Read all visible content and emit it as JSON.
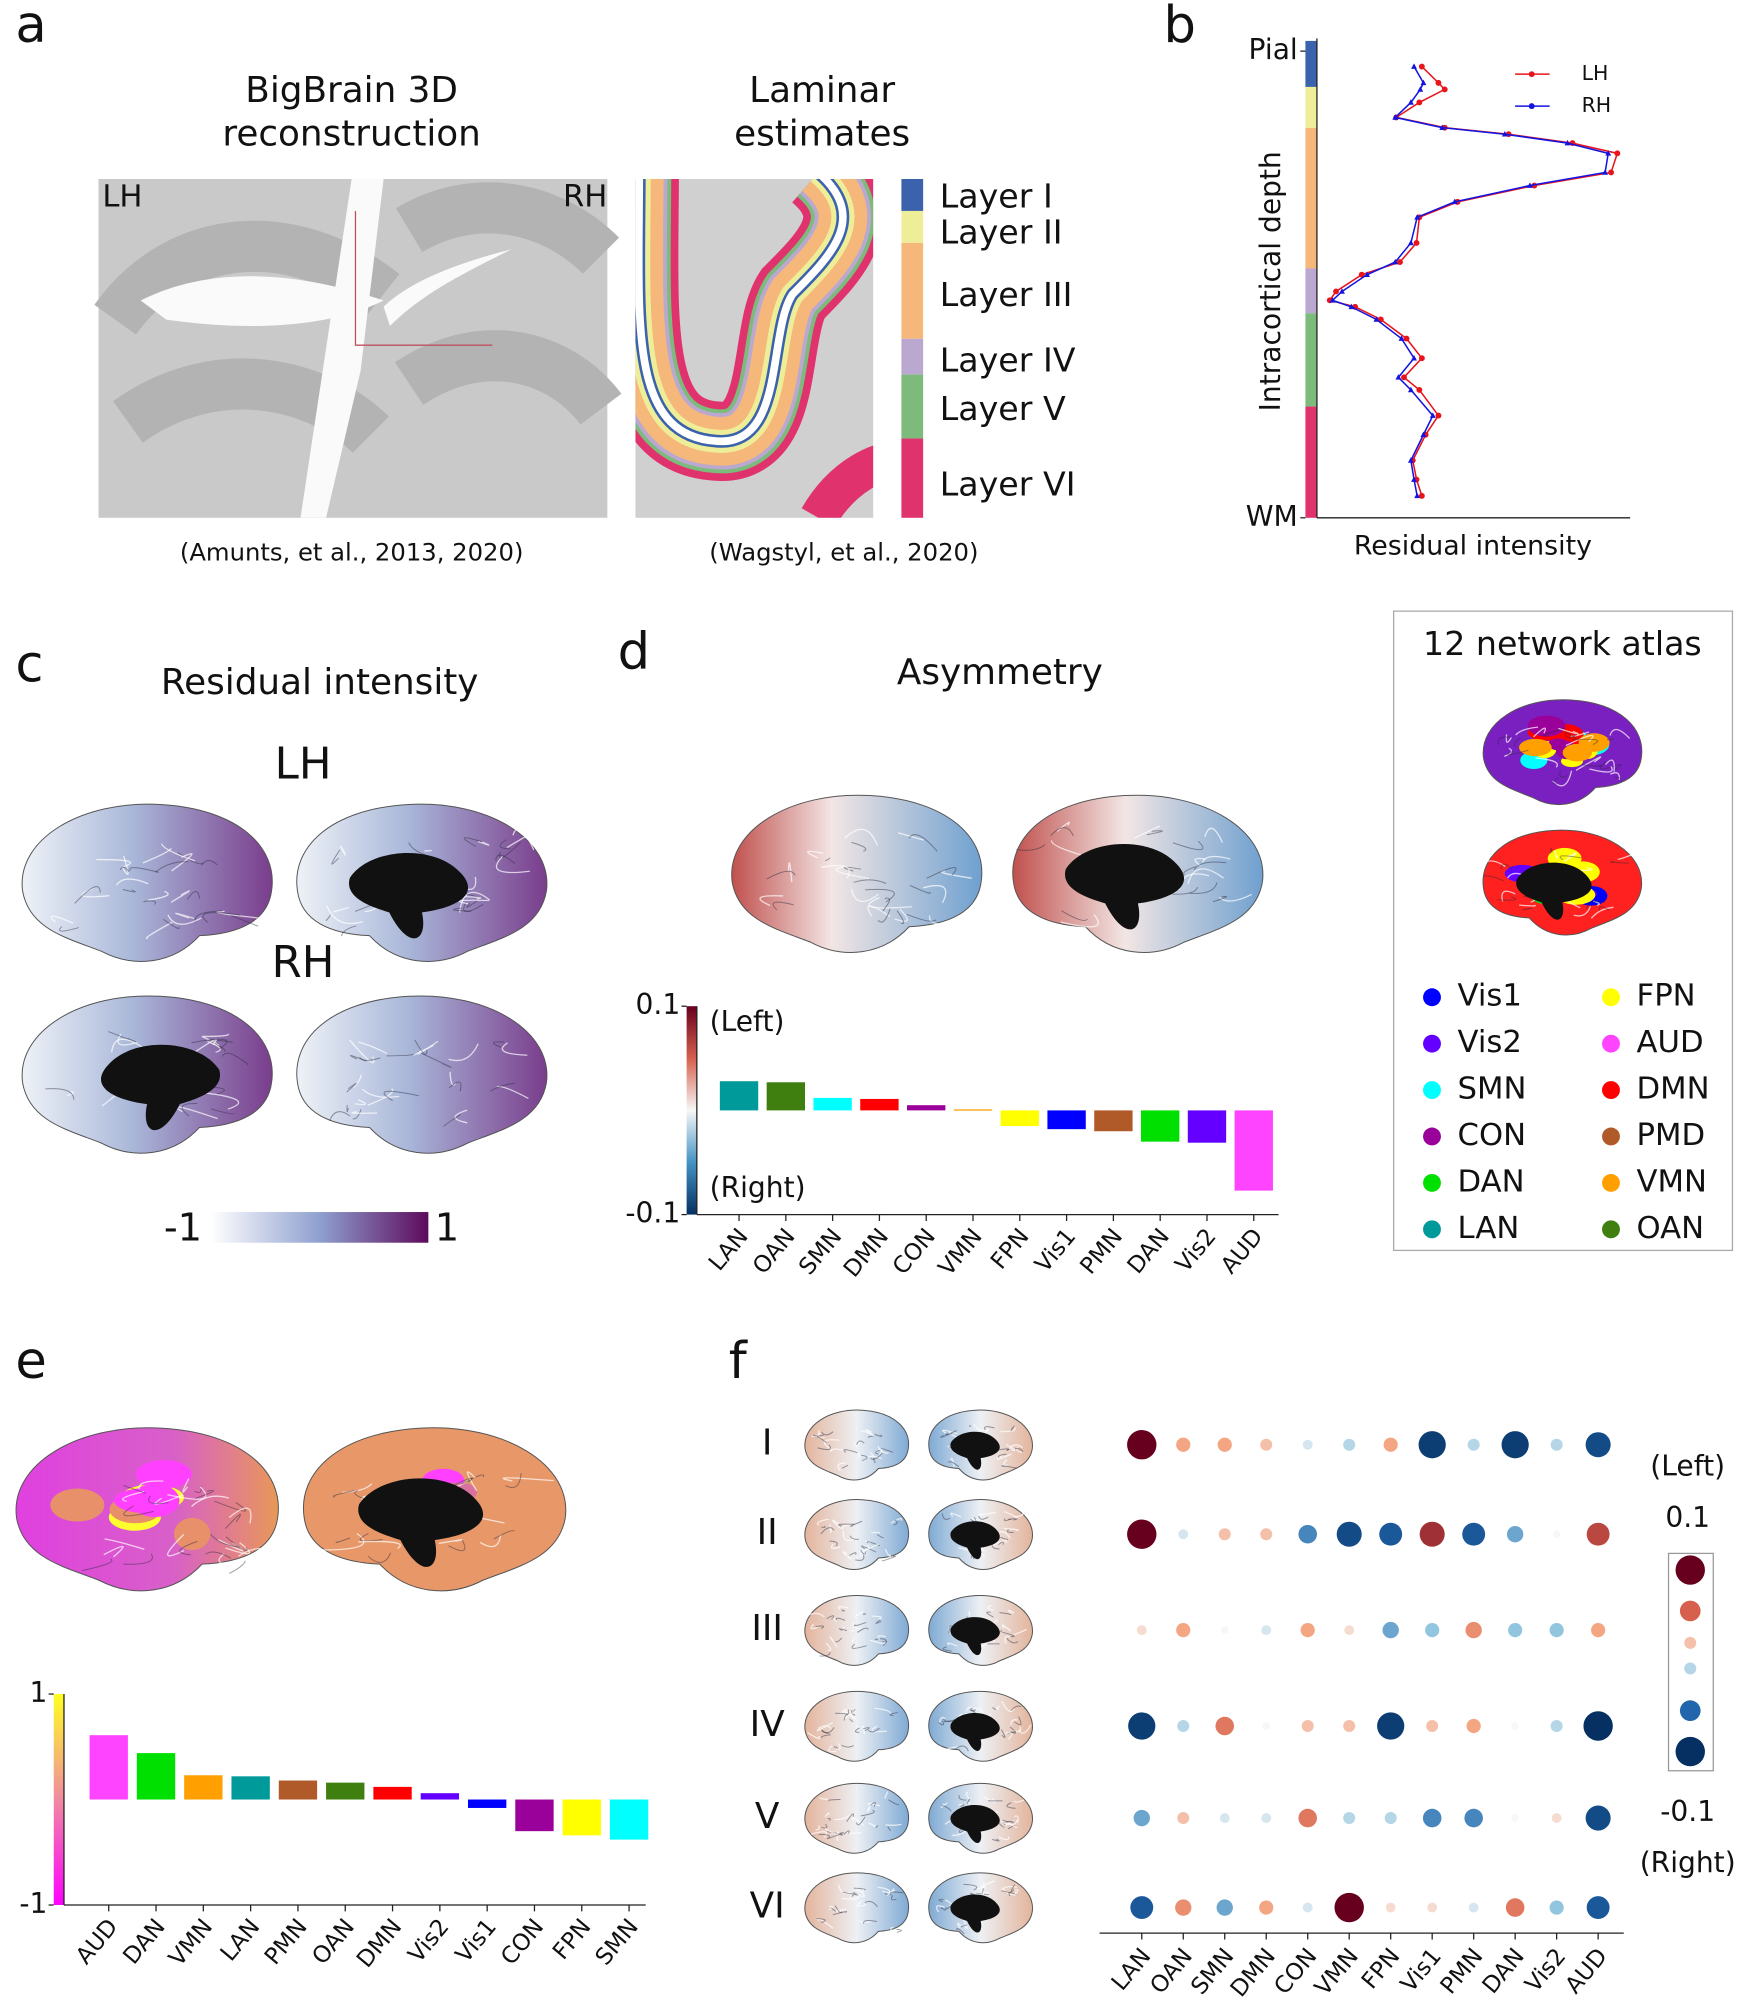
{
  "figure": {
    "letters": [
      "a",
      "b",
      "c",
      "d",
      "e",
      "f"
    ],
    "bigbrain": {
      "title": [
        "BigBrain 3D",
        "reconstruction"
      ],
      "hemis": [
        "LH",
        "RH"
      ],
      "citation": "(Amunts, et al., 2013, 2020)"
    },
    "laminar": {
      "title": [
        "Laminar",
        "estimates"
      ],
      "citation": "(Wagstyl, et al., 2020)",
      "layers": [
        {
          "name": "Layer I",
          "color": "#3a62ad"
        },
        {
          "name": "Layer II",
          "color": "#eeee99"
        },
        {
          "name": "Layer III",
          "color": "#f5b77a"
        },
        {
          "name": "Layer IV",
          "color": "#bba8d0"
        },
        {
          "name": "Layer V",
          "color": "#7dbb7d"
        },
        {
          "name": "Layer VI",
          "color": "#e0336e"
        }
      ]
    },
    "residual": {
      "title": "Residual intensity",
      "hemis": [
        "LH",
        "RH"
      ],
      "colorbar_ticks": [
        -1,
        1
      ]
    },
    "atlas": {
      "title": "12 network atlas",
      "networks": [
        {
          "name": "Vis1",
          "color": "#0000ff"
        },
        {
          "name": "Vis2",
          "color": "#6400ff"
        },
        {
          "name": "SMN",
          "color": "#00ffff"
        },
        {
          "name": "CON",
          "color": "#9a009a"
        },
        {
          "name": "DAN",
          "color": "#00e000"
        },
        {
          "name": "LAN",
          "color": "#009a9a"
        },
        {
          "name": "FPN",
          "color": "#ffff00"
        },
        {
          "name": "AUD",
          "color": "#ff44ff"
        },
        {
          "name": "DMN",
          "color": "#ff0000"
        },
        {
          "name": "PMD",
          "color": "#b05a2a"
        },
        {
          "name": "VMN",
          "color": "#ffa000"
        },
        {
          "name": "OAN",
          "color": "#3f7f0f"
        }
      ]
    },
    "rows_label": [
      "I",
      "II",
      "III",
      "IV",
      "V",
      "VI"
    ]
  },
  "chart_data": [
    {
      "type": "line",
      "xlabel": "Residual intensity",
      "ylabel": "Intracortical depth",
      "xlim": [
        0,
        1
      ],
      "ylim": [
        0,
        1
      ],
      "yticks": [
        {
          "value": 0,
          "label": "Pial"
        },
        {
          "value": 1,
          "label": "WM"
        }
      ],
      "y": [
        0.033,
        0.068,
        0.082,
        0.11,
        0.142,
        0.164,
        0.178,
        0.197,
        0.219,
        0.26,
        0.288,
        0.323,
        0.356,
        0.411,
        0.452,
        0.479,
        0.515,
        0.534,
        0.548,
        0.575,
        0.616,
        0.658,
        0.699,
        0.726,
        0.781,
        0.822,
        0.877,
        0.918,
        0.953
      ],
      "series": [
        {
          "name": "LH",
          "color": "#e8141c",
          "values": [
            0.335,
            0.388,
            0.408,
            0.327,
            0.253,
            0.408,
            0.612,
            0.816,
            0.959,
            0.939,
            0.694,
            0.449,
            0.327,
            0.318,
            0.265,
            0.143,
            0.061,
            0.041,
            0.122,
            0.204,
            0.286,
            0.335,
            0.278,
            0.327,
            0.388,
            0.347,
            0.306,
            0.318,
            0.335
          ]
        },
        {
          "name": "RH",
          "color": "#1414e0",
          "values": [
            0.31,
            0.34,
            0.33,
            0.3,
            0.25,
            0.4,
            0.6,
            0.8,
            0.93,
            0.92,
            0.68,
            0.44,
            0.32,
            0.3,
            0.25,
            0.16,
            0.08,
            0.05,
            0.11,
            0.19,
            0.27,
            0.31,
            0.26,
            0.3,
            0.37,
            0.34,
            0.3,
            0.31,
            0.32
          ]
        }
      ]
    },
    {
      "type": "bar",
      "title": "Asymmetry",
      "categories": [
        "LAN",
        "OAN",
        "SMN",
        "DMN",
        "CON",
        "VMN",
        "FPN",
        "Vis1",
        "PMN",
        "DAN",
        "Vis2",
        "AUD"
      ],
      "values": [
        0.028,
        0.027,
        0.012,
        0.011,
        0.005,
        0.001,
        -0.015,
        -0.018,
        -0.02,
        -0.03,
        -0.031,
        -0.077
      ],
      "colors": [
        "#009a9a",
        "#3f7f0f",
        "#00ffff",
        "#ff0000",
        "#9a009a",
        "#ffa000",
        "#ffff00",
        "#0000ff",
        "#b05a2a",
        "#00e000",
        "#6400ff",
        "#ff44ff"
      ],
      "ylim": [
        -0.1,
        0.1
      ],
      "yticks": [
        -0.1,
        0.1
      ],
      "annotations": [
        "(Left)",
        "(Right)"
      ]
    },
    {
      "type": "bar",
      "categories": [
        "AUD",
        "DAN",
        "VMN",
        "LAN",
        "PMN",
        "OAN",
        "DMN",
        "Vis2",
        "Vis1",
        "CON",
        "FPN",
        "SMN"
      ],
      "values": [
        0.61,
        0.44,
        0.23,
        0.22,
        0.18,
        0.16,
        0.12,
        0.06,
        -0.08,
        -0.3,
        -0.34,
        -0.38
      ],
      "colors": [
        "#ff44ff",
        "#00e000",
        "#ffa000",
        "#009a9a",
        "#b05a2a",
        "#3f7f0f",
        "#ff0000",
        "#6400ff",
        "#0000ff",
        "#9a009a",
        "#ffff00",
        "#00ffff"
      ],
      "ylim": [
        -1,
        1
      ],
      "yticks": [
        -1,
        1
      ]
    },
    {
      "type": "dot",
      "rows": [
        "I",
        "II",
        "III",
        "IV",
        "V",
        "VI"
      ],
      "categories": [
        "LAN",
        "OAN",
        "SMN",
        "DMN",
        "CON",
        "VMN",
        "FPN",
        "Vis1",
        "PMN",
        "DAN",
        "Vis2",
        "AUD"
      ],
      "values": [
        [
          0.1,
          0.03,
          0.03,
          0.02,
          -0.01,
          -0.02,
          0.03,
          -0.09,
          -0.02,
          -0.09,
          -0.02,
          -0.08
        ],
        [
          0.1,
          -0.01,
          0.02,
          0.02,
          -0.05,
          -0.08,
          -0.07,
          0.08,
          -0.07,
          -0.04,
          0.0,
          0.07
        ],
        [
          0.01,
          0.03,
          0.0,
          -0.01,
          0.03,
          0.01,
          -0.04,
          -0.03,
          0.04,
          -0.03,
          -0.03,
          0.03
        ],
        [
          -0.09,
          -0.02,
          0.05,
          0.0,
          0.02,
          0.02,
          -0.09,
          0.02,
          0.03,
          0.0,
          -0.02,
          -0.1
        ],
        [
          -0.04,
          0.02,
          -0.01,
          -0.01,
          0.05,
          -0.02,
          -0.02,
          -0.05,
          -0.05,
          0.0,
          0.01,
          -0.08
        ],
        [
          -0.07,
          0.04,
          -0.04,
          0.03,
          -0.01,
          0.1,
          0.01,
          0.01,
          -0.01,
          0.05,
          -0.03,
          -0.07
        ]
      ],
      "clim": [
        -0.1,
        0.1
      ],
      "cticks": [
        0.1,
        -0.1
      ],
      "annotations": [
        "(Left)",
        "(Right)"
      ]
    }
  ]
}
